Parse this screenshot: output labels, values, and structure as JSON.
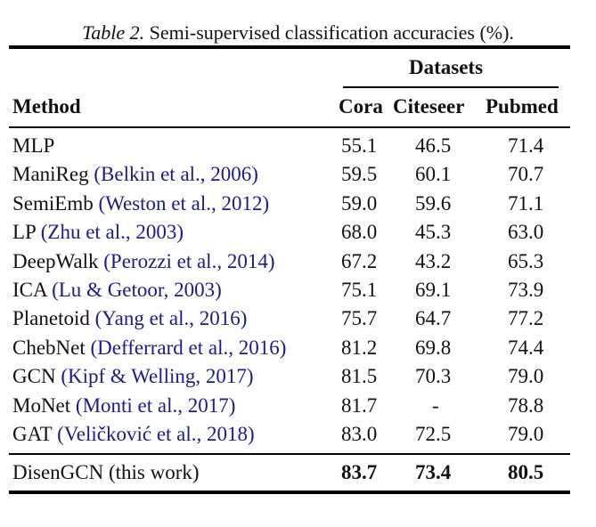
{
  "caption": {
    "label": "Table 2.",
    "text": " Semi-supervised classification accuracies (%)."
  },
  "header": {
    "group_label": "Datasets",
    "method_label": "Method",
    "columns": [
      "Cora",
      "Citeseer",
      "Pubmed"
    ]
  },
  "rows": [
    {
      "method": "MLP",
      "citation": "",
      "cora": "55.1",
      "citeseer": "46.5",
      "pubmed": "71.4"
    },
    {
      "method": "ManiReg ",
      "citation": "(Belkin et al., 2006)",
      "cora": "59.5",
      "citeseer": "60.1",
      "pubmed": "70.7"
    },
    {
      "method": "SemiEmb ",
      "citation": "(Weston et al., 2012)",
      "cora": "59.0",
      "citeseer": "59.6",
      "pubmed": "71.1"
    },
    {
      "method": "LP ",
      "citation": "(Zhu et al., 2003)",
      "cora": "68.0",
      "citeseer": "45.3",
      "pubmed": "63.0"
    },
    {
      "method": "DeepWalk ",
      "citation": "(Perozzi et al., 2014)",
      "cora": "67.2",
      "citeseer": "43.2",
      "pubmed": "65.3"
    },
    {
      "method": "ICA ",
      "citation": "(Lu & Getoor, 2003)",
      "cora": "75.1",
      "citeseer": "69.1",
      "pubmed": "73.9"
    },
    {
      "method": "Planetoid ",
      "citation": "(Yang et al., 2016)",
      "cora": "75.7",
      "citeseer": "64.7",
      "pubmed": "77.2"
    },
    {
      "method": "ChebNet ",
      "citation": "(Defferrard et al., 2016)",
      "cora": "81.2",
      "citeseer": "69.8",
      "pubmed": "74.4"
    },
    {
      "method": "GCN ",
      "citation": "(Kipf & Welling, 2017)",
      "cora": "81.5",
      "citeseer": "70.3",
      "pubmed": "79.0"
    },
    {
      "method": "MoNet ",
      "citation": "(Monti et al., 2017)",
      "cora": "81.7",
      "citeseer": "-",
      "pubmed": "78.8"
    },
    {
      "method": "GAT ",
      "citation": "(Veličković et al., 2018)",
      "cora": "83.0",
      "citeseer": "72.5",
      "pubmed": "79.0"
    }
  ],
  "ours": {
    "method": "DisenGCN (this work)",
    "cora": "83.7",
    "citeseer": "73.4",
    "pubmed": "80.5"
  },
  "colors": {
    "citation": "#1c1c86",
    "text": "#111111",
    "rules": "#000000"
  }
}
